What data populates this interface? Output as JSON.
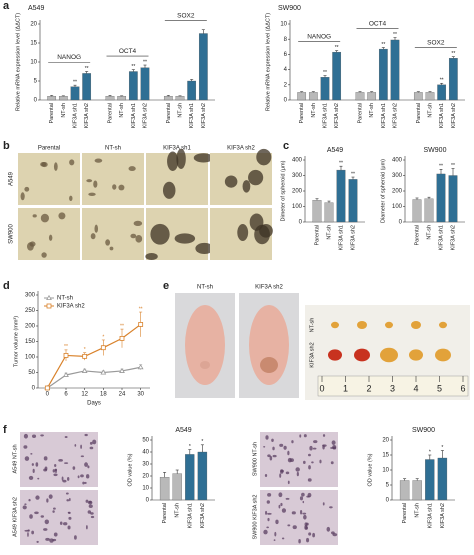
{
  "panel_labels": [
    "a",
    "b",
    "c",
    "d",
    "e",
    "f"
  ],
  "photos": {
    "b": {
      "columns": [
        "Parental",
        "NT-sh",
        "KIF3A sh1",
        "KIF3A sh2"
      ],
      "rows": [
        "A549",
        "SW900"
      ]
    },
    "e": {
      "columns": [
        "NT-sh",
        "KIF3A sh2"
      ],
      "rows": [
        "NT-sh",
        "KIF3A sh2"
      ],
      "ruler": [
        0,
        1,
        2,
        3,
        4,
        5,
        6
      ]
    },
    "f_a549": [
      "A549 NT-sh",
      "A549 KIF3A sh2"
    ],
    "f_sw900": [
      "SW900 NT-sh",
      "SW900 KIF3A sh2"
    ]
  },
  "chart_data": [
    {
      "type": "bar",
      "title": "A549",
      "ylabel": "Relative mRNA expression level (ΔΔCT)",
      "categories": [
        "Parental",
        "NT-sh",
        "KIF3A sh1",
        "KIF3A sh2"
      ],
      "colors": [
        "#b9b9b9",
        "#b9b9b9",
        "#2f6f94",
        "#2f6f94"
      ],
      "groups": [
        {
          "name": "NANOG",
          "values": [
            1,
            1,
            3.5,
            7
          ],
          "errors": [
            0.2,
            0.1,
            0.4,
            0.5
          ],
          "significance": [
            null,
            null,
            "**",
            "**"
          ]
        },
        {
          "name": "OCT4",
          "values": [
            1,
            1,
            7.5,
            8.5
          ],
          "errors": [
            0.2,
            0.1,
            0.5,
            0.7
          ],
          "significance": [
            null,
            null,
            "**",
            "**"
          ]
        },
        {
          "name": "SOX2",
          "values": [
            1,
            1,
            5,
            17.5
          ],
          "errors": [
            0.2,
            0.1,
            0.4,
            1
          ]
        },
        {
          "name": null,
          "values": []
        }
      ],
      "ylim": [
        0,
        20
      ],
      "yticks": [
        0,
        5,
        10,
        15,
        20
      ]
    },
    {
      "type": "bar",
      "title": "SW900",
      "ylabel": "Relative mRNA expression level (ΔΔCT)",
      "categories": [
        "Parental",
        "NT-sh",
        "KIF3A sh1",
        "KIF3A sh2"
      ],
      "colors": [
        "#b9b9b9",
        "#b9b9b9",
        "#2f6f94",
        "#2f6f94"
      ],
      "groups": [
        {
          "name": "NANOG",
          "values": [
            1,
            1,
            3,
            6.3
          ],
          "errors": [
            0.1,
            0.1,
            0.2,
            0.2
          ],
          "significance": [
            null,
            null,
            "**",
            "**"
          ]
        },
        {
          "name": "OCT4",
          "values": [
            1,
            1,
            6.7,
            7.9
          ],
          "errors": [
            0.1,
            0.1,
            0.2,
            0.3
          ],
          "significance": [
            null,
            null,
            "**",
            "**"
          ]
        },
        {
          "name": "SOX2",
          "values": [
            1,
            1,
            2,
            5.5
          ],
          "errors": [
            0.1,
            0.1,
            0.2,
            0.2
          ],
          "significance": [
            null,
            null,
            "**",
            "**"
          ]
        }
      ],
      "ylim": [
        0,
        10
      ],
      "yticks": [
        0,
        2,
        4,
        6,
        8,
        10
      ]
    },
    {
      "type": "bar",
      "title": "A549",
      "ylabel": "Dimeter of spheroid (μm)",
      "categories": [
        "Parental",
        "NT-sh",
        "KIF3A sh1",
        "KIF3A sh2"
      ],
      "colors": [
        "#b9b9b9",
        "#b9b9b9",
        "#2f6f94",
        "#2f6f94"
      ],
      "values": [
        140,
        125,
        335,
        275
      ],
      "errors": [
        10,
        10,
        25,
        15
      ],
      "significance": [
        null,
        null,
        "**",
        "**"
      ],
      "ylim": [
        0,
        400
      ],
      "yticks": [
        0,
        100,
        200,
        300,
        400
      ]
    },
    {
      "type": "bar",
      "title": "SW900",
      "ylabel": "Diameter of spheroid (μm)",
      "categories": [
        "Parental",
        "NT-sh",
        "KIF3A sh1",
        "KIF3A sh2"
      ],
      "colors": [
        "#b9b9b9",
        "#b9b9b9",
        "#2f6f94",
        "#2f6f94"
      ],
      "values": [
        145,
        150,
        310,
        300
      ],
      "errors": [
        10,
        10,
        30,
        45
      ],
      "significance": [
        null,
        null,
        "**",
        "**"
      ],
      "ylim": [
        0,
        400
      ],
      "yticks": [
        0,
        100,
        200,
        300,
        400
      ]
    },
    {
      "type": "line",
      "xlabel": "Days",
      "ylabel": "Tumor volume (mm³)",
      "x": [
        0,
        6,
        12,
        18,
        24,
        30
      ],
      "xlim": [
        -3,
        33
      ],
      "xticks": [
        0,
        6,
        12,
        18,
        24,
        30
      ],
      "ylim": [
        0,
        300
      ],
      "yticks": [
        0,
        50,
        100,
        150,
        200,
        250,
        300
      ],
      "series": [
        {
          "name": "NT-sh",
          "color": "#9a9a9a",
          "marker": "triangle",
          "values": [
            0,
            42,
            55,
            50,
            55,
            67
          ],
          "errors": [
            0,
            6,
            6,
            5,
            6,
            8
          ]
        },
        {
          "name": "KIF3A sh2",
          "color": "#d9822b",
          "marker": "square",
          "values": [
            0,
            105,
            102,
            130,
            160,
            205
          ],
          "errors": [
            0,
            18,
            12,
            25,
            30,
            40
          ],
          "significance": [
            null,
            "**",
            "*",
            "*",
            "**",
            "**"
          ]
        }
      ]
    },
    {
      "type": "bar",
      "title": "A549",
      "ylabel": "OD value (%)",
      "categories": [
        "Parental",
        "NT-sh",
        "KIF3A sh1",
        "KIF3A sh2"
      ],
      "colors": [
        "#b9b9b9",
        "#b9b9b9",
        "#2f6f94",
        "#2f6f94"
      ],
      "values": [
        19,
        22,
        38,
        40
      ],
      "errors": [
        4,
        3,
        4,
        6
      ],
      "significance": [
        null,
        null,
        "*",
        "*"
      ],
      "ylim": [
        0,
        50
      ],
      "yticks": [
        0,
        10,
        20,
        30,
        40,
        50
      ]
    },
    {
      "type": "bar",
      "title": "SW900",
      "ylabel": "OD value (%)",
      "categories": [
        "Parental",
        "NT-sh",
        "KIF3A sh1",
        "KIF3A sh2"
      ],
      "colors": [
        "#b9b9b9",
        "#b9b9b9",
        "#2f6f94",
        "#2f6f94"
      ],
      "values": [
        6.5,
        6.5,
        13.5,
        14
      ],
      "errors": [
        0.6,
        0.6,
        1.5,
        2.5
      ],
      "significance": [
        null,
        null,
        "*",
        "*"
      ],
      "ylim": [
        0,
        20
      ],
      "yticks": [
        0,
        5,
        10,
        15,
        20
      ]
    }
  ]
}
